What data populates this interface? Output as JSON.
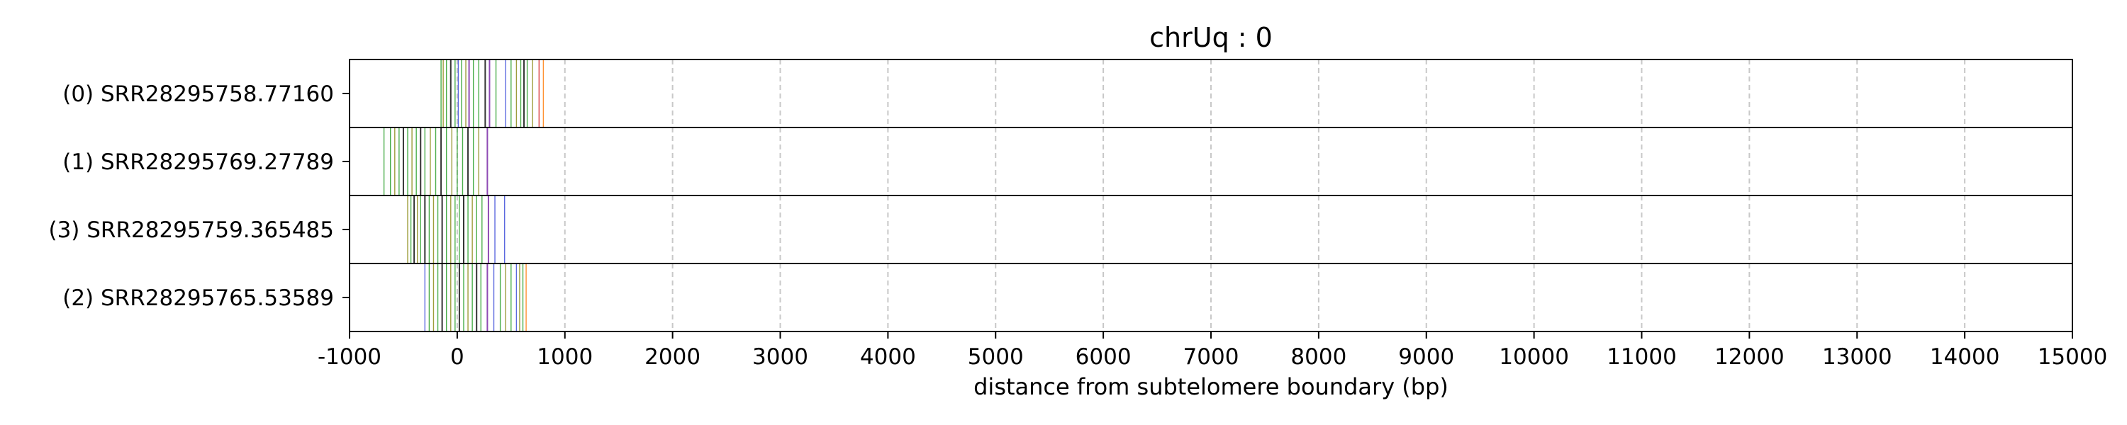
{
  "chart_data": {
    "type": "line",
    "title": "chrUq : 0",
    "xlabel": "distance from subtelomere boundary (bp)",
    "ylabel": "",
    "xlim": [
      -1000,
      15000
    ],
    "xticks": [
      -1000,
      0,
      1000,
      2000,
      3000,
      4000,
      5000,
      6000,
      7000,
      8000,
      9000,
      10000,
      11000,
      12000,
      13000,
      14000,
      15000
    ],
    "grid": "vertical dashed",
    "tracks": [
      {
        "name": "(0) SRR28295758.77160",
        "marks": [
          {
            "x": -150,
            "color": "green"
          },
          {
            "x": -130,
            "color": "olive"
          },
          {
            "x": -100,
            "color": "green"
          },
          {
            "x": -60,
            "color": "black"
          },
          {
            "x": -20,
            "color": "green"
          },
          {
            "x": 10,
            "color": "blue"
          },
          {
            "x": 40,
            "color": "green"
          },
          {
            "x": 80,
            "color": "olive"
          },
          {
            "x": 110,
            "color": "purple"
          },
          {
            "x": 150,
            "color": "green"
          },
          {
            "x": 200,
            "color": "green"
          },
          {
            "x": 260,
            "color": "black"
          },
          {
            "x": 300,
            "color": "purple"
          },
          {
            "x": 360,
            "color": "green"
          },
          {
            "x": 450,
            "color": "blue"
          },
          {
            "x": 500,
            "color": "green"
          },
          {
            "x": 550,
            "color": "olive"
          },
          {
            "x": 590,
            "color": "green"
          },
          {
            "x": 620,
            "color": "black"
          },
          {
            "x": 650,
            "color": "green"
          },
          {
            "x": 700,
            "color": "olive"
          },
          {
            "x": 760,
            "color": "red"
          },
          {
            "x": 800,
            "color": "orange"
          }
        ]
      },
      {
        "name": "(1) SRR28295769.27789",
        "marks": [
          {
            "x": -680,
            "color": "green"
          },
          {
            "x": -620,
            "color": "green"
          },
          {
            "x": -580,
            "color": "olive"
          },
          {
            "x": -540,
            "color": "green"
          },
          {
            "x": -500,
            "color": "black"
          },
          {
            "x": -460,
            "color": "green"
          },
          {
            "x": -420,
            "color": "olive"
          },
          {
            "x": -380,
            "color": "green"
          },
          {
            "x": -340,
            "color": "black"
          },
          {
            "x": -300,
            "color": "green"
          },
          {
            "x": -250,
            "color": "olive"
          },
          {
            "x": -200,
            "color": "green"
          },
          {
            "x": -150,
            "color": "black"
          },
          {
            "x": -100,
            "color": "green"
          },
          {
            "x": -50,
            "color": "olive"
          },
          {
            "x": 0,
            "color": "green"
          },
          {
            "x": 50,
            "color": "green"
          },
          {
            "x": 100,
            "color": "black"
          },
          {
            "x": 150,
            "color": "green"
          },
          {
            "x": 200,
            "color": "olive"
          },
          {
            "x": 280,
            "color": "purple"
          }
        ]
      },
      {
        "name": "(3) SRR28295759.365485",
        "marks": [
          {
            "x": -460,
            "color": "olive"
          },
          {
            "x": -430,
            "color": "green"
          },
          {
            "x": -400,
            "color": "black"
          },
          {
            "x": -370,
            "color": "olive"
          },
          {
            "x": -340,
            "color": "green"
          },
          {
            "x": -300,
            "color": "black"
          },
          {
            "x": -260,
            "color": "green"
          },
          {
            "x": -220,
            "color": "olive"
          },
          {
            "x": -180,
            "color": "green"
          },
          {
            "x": -140,
            "color": "black"
          },
          {
            "x": -100,
            "color": "green"
          },
          {
            "x": -60,
            "color": "olive"
          },
          {
            "x": -20,
            "color": "green"
          },
          {
            "x": 20,
            "color": "green"
          },
          {
            "x": 60,
            "color": "black"
          },
          {
            "x": 100,
            "color": "green"
          },
          {
            "x": 140,
            "color": "olive"
          },
          {
            "x": 180,
            "color": "green"
          },
          {
            "x": 230,
            "color": "green"
          },
          {
            "x": 290,
            "color": "purple"
          },
          {
            "x": 350,
            "color": "blue"
          },
          {
            "x": 440,
            "color": "blue"
          }
        ]
      },
      {
        "name": "(2) SRR28295765.53589",
        "marks": [
          {
            "x": -300,
            "color": "blue"
          },
          {
            "x": -260,
            "color": "green"
          },
          {
            "x": -220,
            "color": "olive"
          },
          {
            "x": -180,
            "color": "green"
          },
          {
            "x": -140,
            "color": "black"
          },
          {
            "x": -100,
            "color": "green"
          },
          {
            "x": -60,
            "color": "olive"
          },
          {
            "x": -20,
            "color": "green"
          },
          {
            "x": 20,
            "color": "black"
          },
          {
            "x": 60,
            "color": "green"
          },
          {
            "x": 100,
            "color": "olive"
          },
          {
            "x": 140,
            "color": "green"
          },
          {
            "x": 180,
            "color": "black"
          },
          {
            "x": 220,
            "color": "green"
          },
          {
            "x": 280,
            "color": "purple"
          },
          {
            "x": 340,
            "color": "blue"
          },
          {
            "x": 400,
            "color": "green"
          },
          {
            "x": 450,
            "color": "olive"
          },
          {
            "x": 500,
            "color": "green"
          },
          {
            "x": 550,
            "color": "blue"
          },
          {
            "x": 580,
            "color": "olive"
          },
          {
            "x": 610,
            "color": "green"
          },
          {
            "x": 640,
            "color": "orange"
          }
        ]
      }
    ],
    "colors": {
      "green": "#2ca02c",
      "olive": "#8c8c1a",
      "black": "#111111",
      "blue": "#3f4fd9",
      "purple": "#7a2aa8",
      "red": "#d62728",
      "orange": "#ff7f0e",
      "grid": "#c8c8c8",
      "frame": "#000000"
    }
  }
}
